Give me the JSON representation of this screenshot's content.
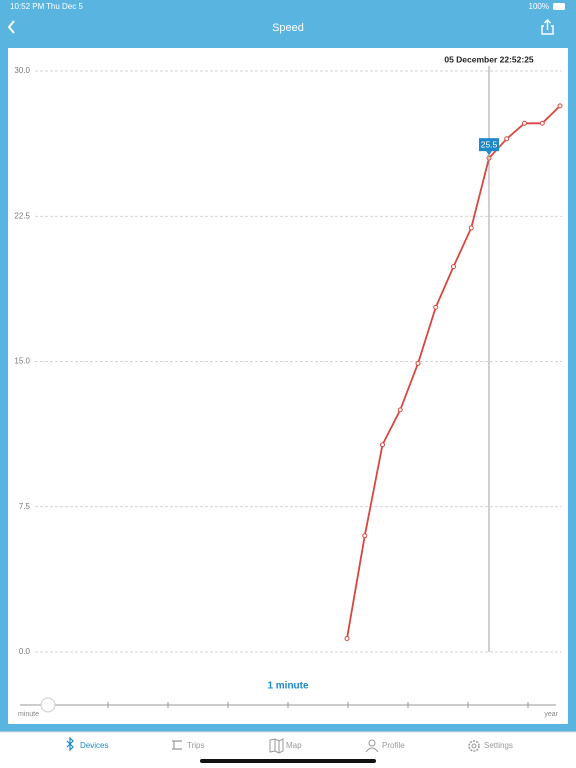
{
  "status_bar": {
    "time": "10:52 PM",
    "date": "Thu Dec 5",
    "battery": "100%"
  },
  "nav": {
    "title": "Speed"
  },
  "chart_data": {
    "type": "line",
    "categories": [
      null,
      null,
      null,
      null,
      null,
      null,
      null,
      null,
      null,
      null,
      null,
      null,
      null,
      null,
      null,
      null,
      null,
      null,
      null,
      null,
      null,
      null,
      null,
      null,
      null,
      null,
      null,
      null,
      null,
      null
    ],
    "series": [
      {
        "name": null,
        "color": "#d9463e",
        "values": [
          null,
          null,
          null,
          null,
          null,
          null,
          null,
          null,
          null,
          null,
          null,
          null,
          null,
          null,
          null,
          null,
          null,
          0.7,
          6.0,
          10.7,
          12.5,
          14.9,
          17.8,
          19.9,
          21.9,
          25.5,
          26.5,
          27.3,
          27.3,
          28.2
        ]
      }
    ],
    "ylim": [
      0,
      30
    ],
    "yticks": [
      {
        "value": 0,
        "label": "0.0"
      },
      {
        "value": 7.5,
        "label": "7.5"
      },
      {
        "value": 15,
        "label": "15.0"
      },
      {
        "value": 22.5,
        "label": "22.5"
      },
      {
        "value": 30,
        "label": "30.0"
      }
    ],
    "grid": true,
    "tooltip": {
      "label": "05 December 22:52:25",
      "value": 25.5
    }
  },
  "slider": {
    "value_label": "1 minute",
    "min_label": "minute",
    "max_label": "year"
  },
  "tabs": [
    "Devices",
    "Trips",
    "Map",
    "Profile",
    "Settings"
  ]
}
